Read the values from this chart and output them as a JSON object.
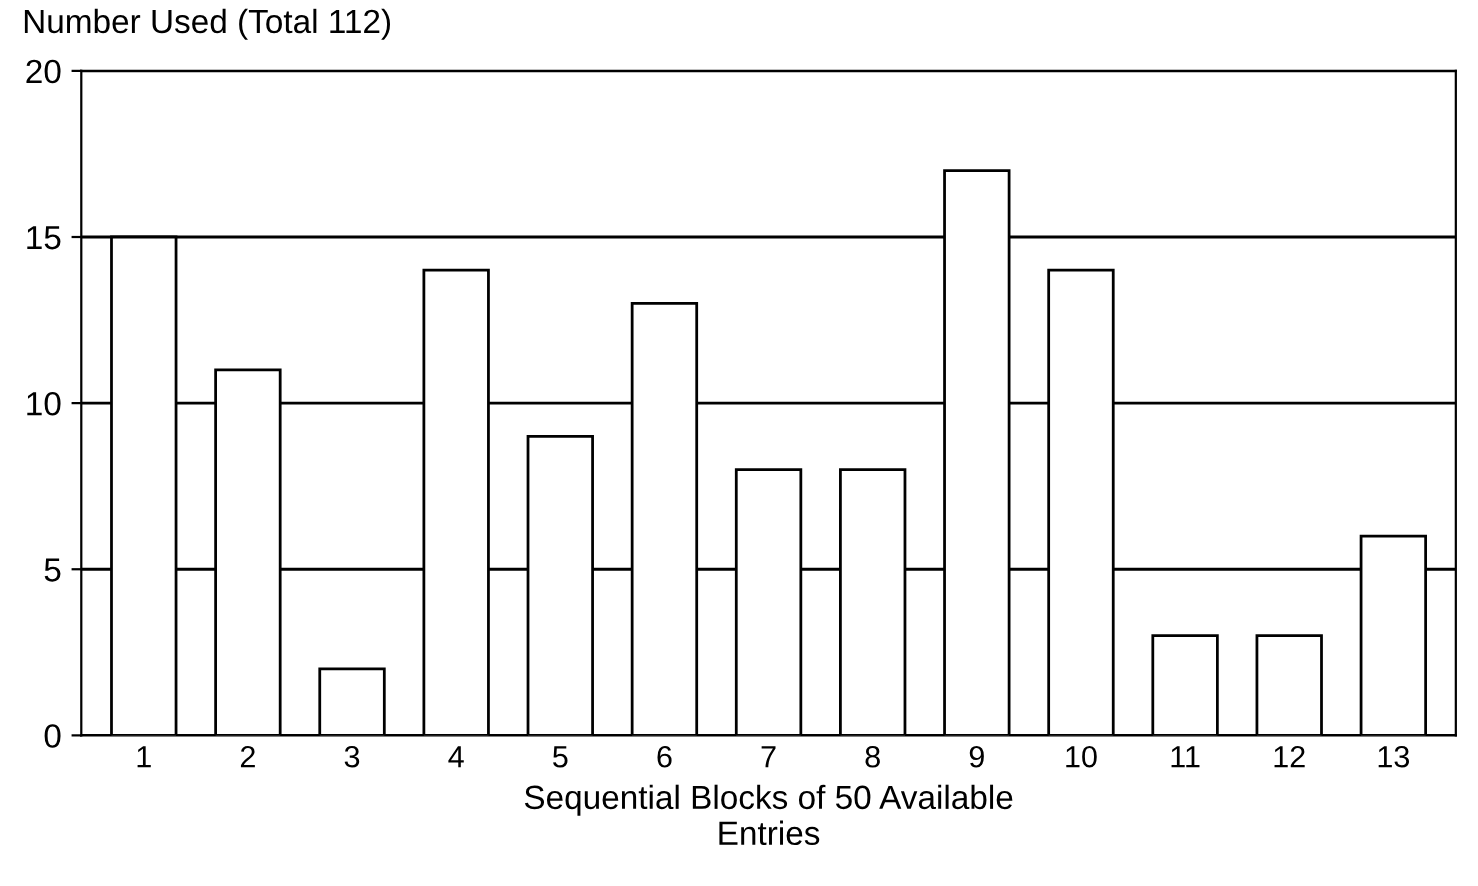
{
  "chart_data": {
    "type": "bar",
    "ylabel": "Number Used (Total 112)",
    "xlabel": "Sequential Blocks of 50 Available\nEntries",
    "categories": [
      "1",
      "2",
      "3",
      "4",
      "5",
      "6",
      "7",
      "8",
      "9",
      "10",
      "11",
      "12",
      "13"
    ],
    "values": [
      15,
      11,
      2,
      14,
      9,
      13,
      8,
      8,
      17,
      14,
      3,
      3,
      6
    ],
    "color": "#ffffff",
    "ylim": [
      0,
      20
    ],
    "yticks": [
      0,
      5,
      10,
      15,
      20
    ],
    "grid": "y"
  }
}
